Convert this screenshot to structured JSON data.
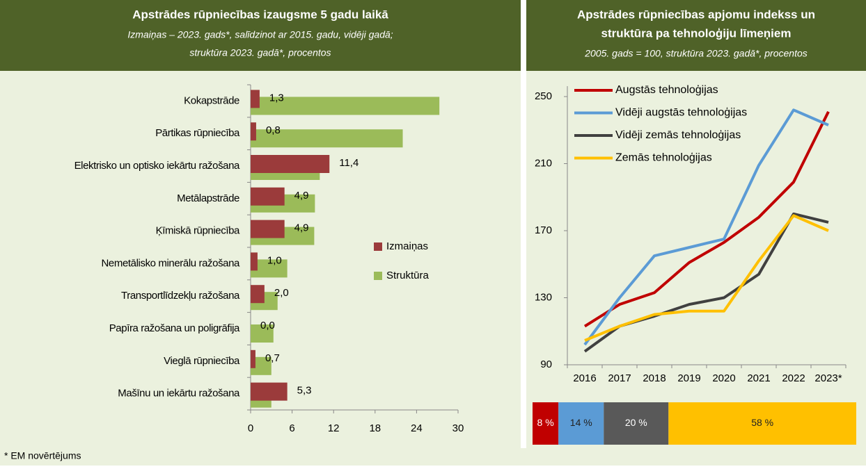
{
  "left_header": {
    "title": "Apstrādes rūpniecības izaugsme 5 gadu laikā",
    "subtitle": [
      "Izmaiņas – 2023. gads*, salīdzinot ar 2015. gadu, vidēji gadā;",
      "struktūra 2023. gadā*, procentos"
    ]
  },
  "right_header": {
    "title": [
      "Apstrādes rūpniecības apjomu indekss un",
      "struktūra pa tehnoloģiju līmeņiem"
    ],
    "subtitle": "2005. gads = 100, struktūra 2023. gadā*, procentos"
  },
  "footnote": "* EM novērtējums",
  "chart_data": [
    {
      "type": "hbar",
      "categories": [
        "Kokapstrāde",
        "Pārtikas rūpniecība",
        "Elektrisko un optisko iekārtu ražošana",
        "Metālapstrāde",
        "Ķīmiskā rūpniecība",
        "Nemetālisko minerālu ražošana",
        "Transportlīdzekļu ražošana",
        "Papīra ražošana un poligrāfija",
        "Vieglā rūpniecība",
        "Mašīnu un iekārtu ražošana"
      ],
      "series": [
        {
          "name": "Izmaiņas",
          "color": "#9b3b3b",
          "values": [
            1.3,
            0.8,
            11.4,
            4.9,
            4.9,
            1.0,
            2.0,
            0.0,
            0.7,
            5.3
          ],
          "value_labels": [
            "1,3",
            "0,8",
            "11,4",
            "4,9",
            "4,9",
            "1,0",
            "2,0",
            "0,0",
            "0,7",
            "5,3"
          ]
        },
        {
          "name": "Struktūra",
          "color": "#9bbb59",
          "values": [
            27.3,
            22.0,
            10.0,
            9.3,
            9.2,
            5.3,
            3.9,
            3.3,
            3.0,
            3.0
          ]
        }
      ],
      "xlim": [
        0,
        30
      ],
      "xticks": [
        0,
        6,
        12,
        18,
        24,
        30
      ],
      "legend": "right"
    },
    {
      "type": "line",
      "categories": [
        "2016",
        "2017",
        "2018",
        "2019",
        "2020",
        "2021",
        "2022",
        "2023*"
      ],
      "series": [
        {
          "name": "Augstās tehnoloģijas",
          "color": "#c00000",
          "values": [
            113,
            126,
            133,
            151,
            163,
            178,
            199,
            241
          ]
        },
        {
          "name": "Vidēji augstās tehnoloģijas",
          "color": "#5b9bd5",
          "values": [
            102,
            130,
            155,
            160,
            165,
            209,
            242,
            233
          ]
        },
        {
          "name": "Vidēji zemās tehnoloģijas",
          "color": "#404040",
          "values": [
            98,
            113,
            119,
            126,
            130,
            144,
            180,
            175
          ]
        },
        {
          "name": "Zemās tehnoloģijas",
          "color": "#ffc000",
          "values": [
            104.5,
            113,
            120,
            122,
            122,
            152,
            179,
            170
          ]
        }
      ],
      "ylim": [
        90,
        250
      ],
      "yticks": [
        90,
        130,
        170,
        210,
        250
      ],
      "legend": "top-left"
    },
    {
      "type": "stackedbar",
      "values": [
        8,
        14,
        20,
        58
      ],
      "value_labels": [
        "8 %",
        "14 %",
        "20 %",
        "58 %"
      ],
      "colors": [
        "#c00000",
        "#5b9bd5",
        "#595959",
        "#ffc000"
      ]
    }
  ]
}
